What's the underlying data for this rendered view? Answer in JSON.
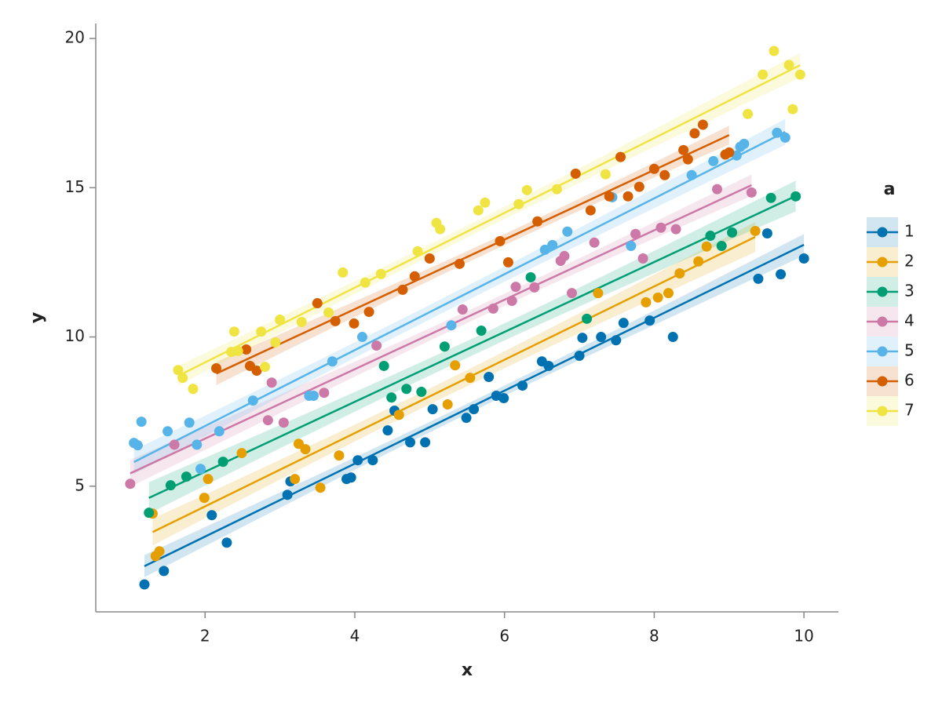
{
  "chart_data": {
    "type": "scatter",
    "x_label": "x",
    "y_label": "y",
    "legend_title": "a",
    "legend_position": "right",
    "xlim": [
      0.54,
      10.46
    ],
    "ylim": [
      0.79,
      20.5
    ],
    "xticks": [
      2,
      4,
      6,
      8,
      10
    ],
    "yticks": [
      5,
      10,
      15,
      20
    ],
    "grid": false,
    "series": [
      {
        "name": "1",
        "color": "#0072b2",
        "x": [
          1.19,
          1.45,
          2.09,
          2.29,
          3.1,
          3.14,
          3.89,
          3.95,
          4.04,
          4.24,
          4.44,
          4.53,
          4.74,
          4.94,
          5.04,
          5.49,
          5.59,
          5.79,
          5.89,
          5.99,
          6.24,
          6.5,
          6.59,
          7.0,
          7.04,
          7.29,
          7.49,
          7.59,
          7.94,
          8.25,
          9.39,
          9.51,
          9.69,
          10.0
        ],
        "values": [
          1.71,
          2.16,
          4.03,
          3.11,
          4.71,
          5.16,
          5.24,
          5.29,
          5.87,
          5.87,
          6.87,
          7.53,
          6.47,
          6.47,
          7.58,
          7.29,
          7.58,
          8.66,
          8.03,
          7.95,
          8.37,
          9.18,
          9.03,
          9.37,
          9.97,
          10.0,
          9.89,
          10.47,
          10.55,
          10.0,
          11.95,
          13.47,
          12.1,
          12.63
        ]
      },
      {
        "name": "2",
        "color": "#e69f00",
        "x": [
          1.3,
          1.34,
          1.39,
          1.99,
          2.04,
          2.49,
          3.2,
          3.25,
          3.34,
          3.54,
          3.79,
          4.59,
          5.24,
          5.34,
          5.54,
          7.25,
          7.89,
          8.05,
          8.19,
          8.34,
          8.59,
          8.7,
          9.35
        ],
        "values": [
          4.08,
          2.66,
          2.82,
          4.61,
          5.24,
          6.11,
          5.24,
          6.42,
          6.24,
          4.95,
          6.03,
          7.39,
          7.74,
          9.05,
          8.63,
          11.47,
          11.16,
          11.32,
          11.47,
          12.13,
          12.53,
          13.03,
          13.55
        ]
      },
      {
        "name": "3",
        "color": "#009e73",
        "x": [
          1.25,
          1.54,
          1.75,
          2.24,
          4.39,
          4.49,
          4.69,
          4.89,
          5.2,
          5.69,
          6.35,
          7.1,
          8.75,
          8.9,
          9.04,
          9.56,
          9.89
        ],
        "values": [
          4.11,
          5.03,
          5.32,
          5.82,
          9.03,
          7.97,
          8.26,
          8.16,
          9.68,
          10.21,
          12.0,
          10.61,
          13.39,
          13.05,
          13.5,
          14.66,
          14.71
        ]
      },
      {
        "name": "4",
        "color": "#cc79a7",
        "x": [
          1.0,
          1.59,
          2.84,
          2.89,
          3.05,
          3.59,
          4.29,
          5.44,
          5.85,
          6.1,
          6.15,
          6.4,
          6.75,
          6.8,
          6.9,
          7.2,
          7.75,
          7.85,
          8.09,
          8.29,
          8.84,
          9.3
        ],
        "values": [
          5.08,
          6.39,
          7.21,
          8.47,
          7.13,
          8.13,
          9.71,
          10.92,
          10.95,
          11.21,
          11.68,
          11.66,
          12.55,
          12.71,
          11.47,
          13.16,
          13.45,
          12.63,
          13.66,
          13.61,
          14.95,
          14.84
        ]
      },
      {
        "name": "5",
        "color": "#56b4e9",
        "x": [
          1.05,
          1.1,
          1.15,
          1.5,
          1.79,
          1.89,
          1.94,
          2.19,
          2.64,
          3.39,
          3.45,
          3.7,
          4.1,
          5.29,
          6.54,
          6.64,
          6.84,
          7.44,
          7.69,
          8.5,
          8.79,
          9.1,
          9.15,
          9.2,
          9.64,
          9.75
        ],
        "values": [
          6.45,
          6.37,
          7.16,
          6.84,
          7.13,
          6.39,
          5.58,
          6.84,
          7.87,
          8.03,
          8.03,
          9.18,
          10.0,
          10.39,
          12.92,
          13.08,
          13.53,
          14.68,
          13.05,
          15.42,
          15.89,
          16.08,
          16.37,
          16.47,
          16.84,
          16.68
        ]
      },
      {
        "name": "6",
        "color": "#d55e00",
        "x": [
          2.15,
          2.55,
          2.6,
          2.69,
          3.5,
          3.74,
          3.99,
          4.19,
          4.64,
          4.8,
          5.0,
          5.4,
          5.94,
          6.05,
          6.44,
          6.95,
          7.15,
          7.4,
          7.55,
          7.65,
          7.8,
          8.0,
          8.14,
          8.39,
          8.45,
          8.54,
          8.65,
          8.95,
          9.0
        ],
        "values": [
          8.95,
          9.58,
          9.03,
          8.87,
          11.13,
          10.53,
          10.45,
          10.84,
          11.58,
          12.03,
          12.63,
          12.45,
          13.21,
          12.5,
          13.87,
          15.47,
          14.24,
          14.71,
          16.03,
          14.71,
          15.03,
          15.63,
          15.42,
          16.26,
          15.95,
          16.82,
          17.11,
          16.11,
          16.18
        ]
      },
      {
        "name": "7",
        "color": "#f0e442",
        "x": [
          1.64,
          1.7,
          1.84,
          2.35,
          2.39,
          2.44,
          2.75,
          2.8,
          2.94,
          3.0,
          3.29,
          3.65,
          3.84,
          4.14,
          4.35,
          4.84,
          5.09,
          5.14,
          5.65,
          5.74,
          6.19,
          6.3,
          6.7,
          7.35,
          9.25,
          9.45,
          9.6,
          9.8,
          9.85,
          9.95
        ],
        "values": [
          8.89,
          8.63,
          8.26,
          9.5,
          10.18,
          9.53,
          10.18,
          9.0,
          9.82,
          10.58,
          10.5,
          10.82,
          12.16,
          11.82,
          12.11,
          12.87,
          13.82,
          13.61,
          14.24,
          14.5,
          14.45,
          14.92,
          14.95,
          15.45,
          17.47,
          18.79,
          19.58,
          19.11,
          17.63,
          18.79
        ]
      }
    ]
  }
}
